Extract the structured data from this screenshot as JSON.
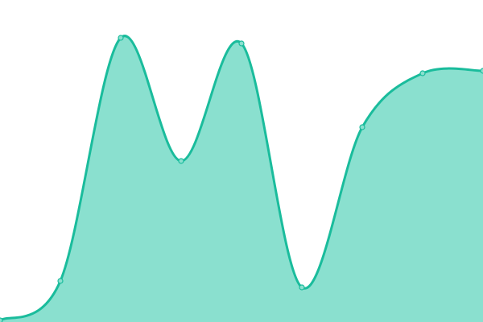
{
  "chart_data": {
    "type": "area",
    "x": [
      0,
      1,
      2,
      3,
      4,
      5,
      6,
      7,
      8
    ],
    "series": [
      {
        "values": [
          2,
          51,
          353,
          200,
          346,
          43,
          242,
          309,
          312
        ]
      }
    ],
    "xlim": [
      0,
      8
    ],
    "ylim": [
      0,
      400
    ],
    "grid": false,
    "axes_visible": false,
    "colors": {
      "line": "#1abc9c",
      "fill": "#8ae0cf",
      "marker_fill": "#8ae0cf"
    }
  }
}
